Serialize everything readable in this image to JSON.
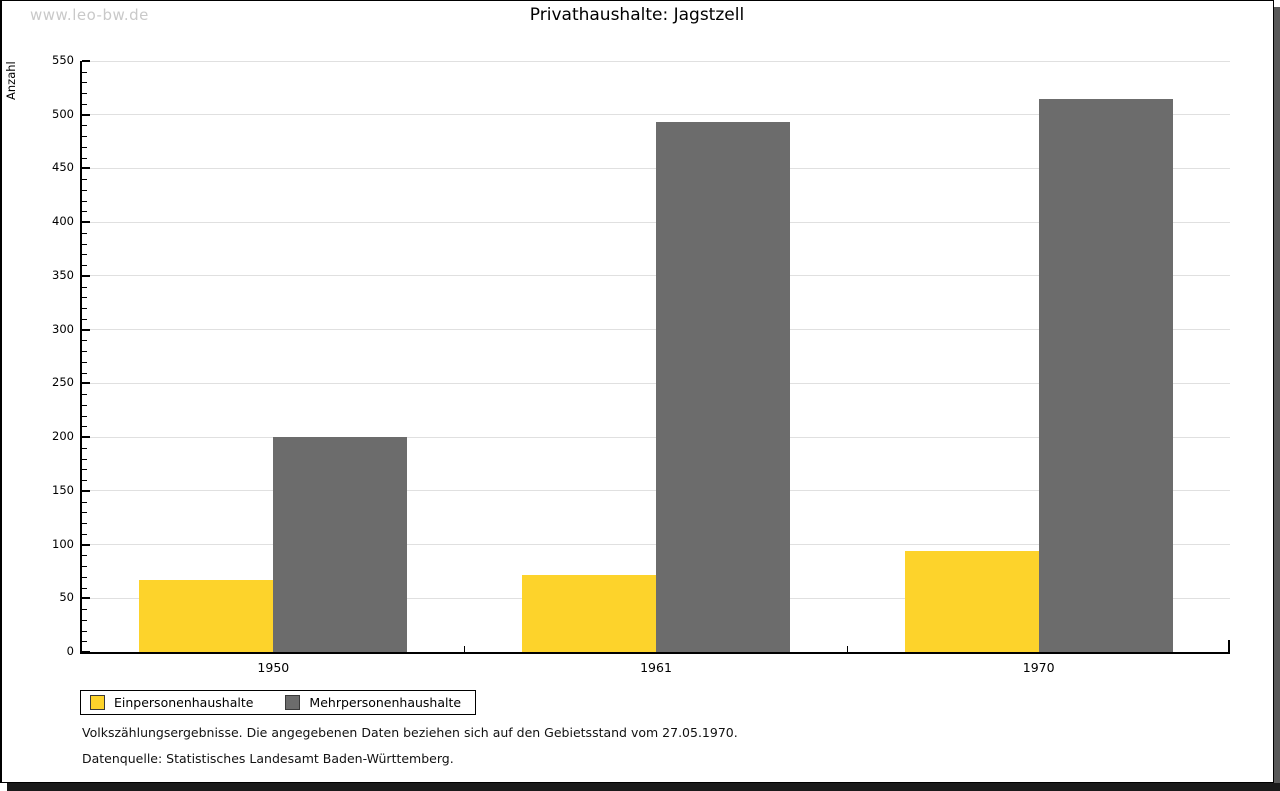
{
  "watermark": "www.leo-bw.de",
  "header": {
    "title": "Privathaushalte: Jagstzell"
  },
  "chart_data": {
    "type": "bar",
    "title": "Privathaushalte: Jagstzell",
    "categories": [
      "1950",
      "1961",
      "1970"
    ],
    "series": [
      {
        "name": "Einpersonenhaushalte",
        "color": "#fdd32b",
        "values": [
          67,
          72,
          94
        ]
      },
      {
        "name": "Mehrpersonenhaushalte",
        "color": "#6c6c6c",
        "values": [
          200,
          493,
          515
        ]
      }
    ],
    "xlabel": "",
    "ylabel": "Anzahl",
    "ylim": [
      0,
      550
    ],
    "ytick_step": 50,
    "yminor_step": 10,
    "grid": true,
    "legend_position": "bottom-left",
    "gridline_color": "#e0e0e0"
  },
  "footnotes": {
    "line1": "Volkszählungsergebnisse. Die angegebenen Daten beziehen sich auf den Gebietsstand vom 27.05.1970.",
    "line2": "Datenquelle: Statistisches Landesamt Baden-Württemberg."
  }
}
